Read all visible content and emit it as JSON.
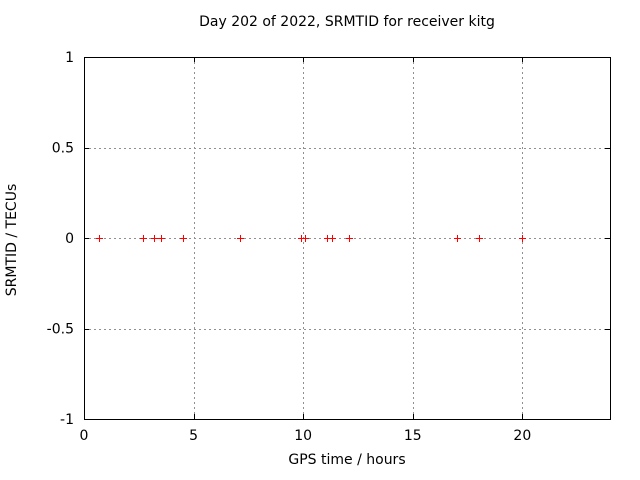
{
  "page": {
    "background": "#ffffff"
  },
  "chart_data": {
    "type": "scatter",
    "title": "Day 202 of 2022, SRMTID for receiver kitg",
    "xlabel": "GPS time / hours",
    "ylabel": "SRMTID / TECUs",
    "xlim": [
      0,
      24
    ],
    "ylim": [
      -1,
      1
    ],
    "grid": true,
    "legend": "none",
    "x_ticks": {
      "values": [
        0,
        5,
        10,
        15,
        20
      ],
      "labels": [
        "0",
        "5",
        "10",
        "15",
        "20"
      ]
    },
    "y_ticks": {
      "values": [
        1,
        0.5,
        0,
        -0.5,
        -1
      ],
      "labels": [
        "1",
        "0.5",
        "0",
        "-0.5",
        "-1"
      ]
    },
    "series": [
      {
        "name": "SRMTID",
        "marker": "plus",
        "color": "#ff0000",
        "points": [
          {
            "x": 0.7,
            "y": 0
          },
          {
            "x": 2.7,
            "y": 0
          },
          {
            "x": 3.2,
            "y": 0
          },
          {
            "x": 3.5,
            "y": 0
          },
          {
            "x": 4.5,
            "y": 0
          },
          {
            "x": 7.1,
            "y": 0
          },
          {
            "x": 9.9,
            "y": 0
          },
          {
            "x": 10.1,
            "y": 0
          },
          {
            "x": 11.1,
            "y": 0
          },
          {
            "x": 11.3,
            "y": 0
          },
          {
            "x": 12.1,
            "y": 0
          },
          {
            "x": 17.0,
            "y": 0
          },
          {
            "x": 18.0,
            "y": 0
          },
          {
            "x": 20.0,
            "y": 0
          }
        ]
      }
    ],
    "colors": {
      "axis": "#000000",
      "grid": "#909090",
      "text": "#000000",
      "marker": "#ff0000"
    }
  }
}
